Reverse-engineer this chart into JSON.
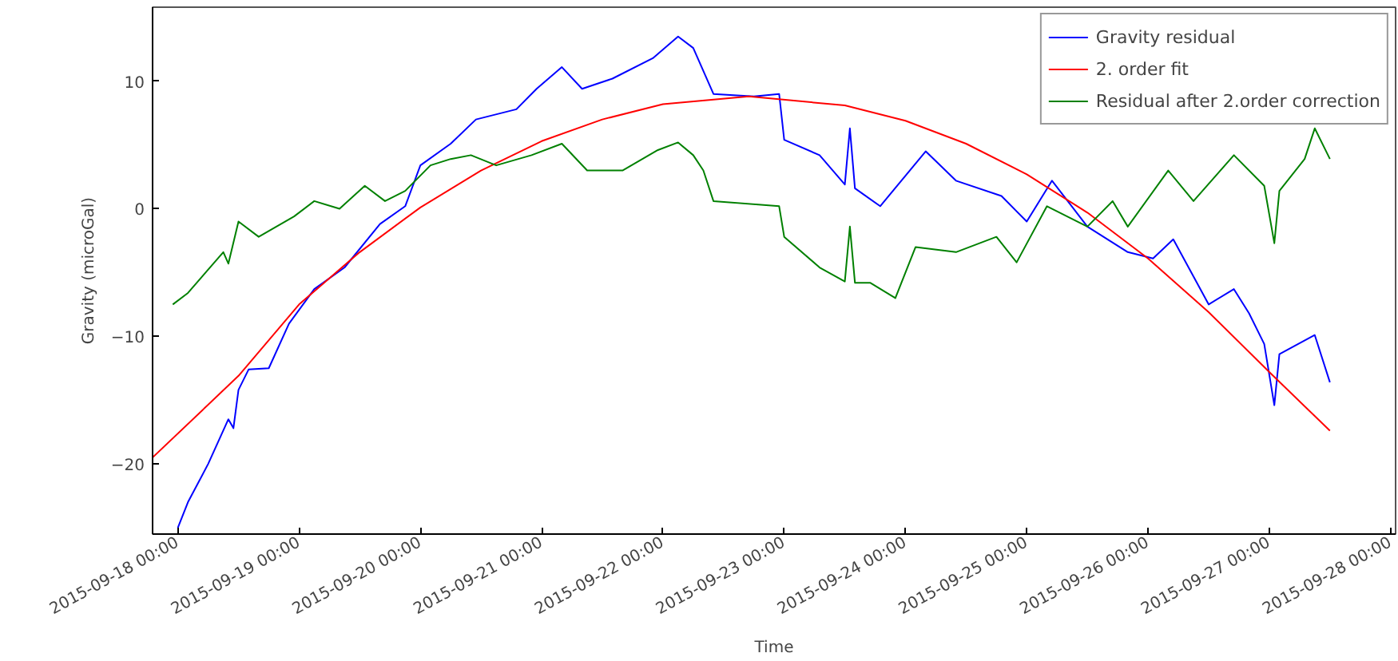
{
  "chart_data": {
    "type": "line",
    "xlabel": "Time",
    "ylabel": "Gravity (microGal)",
    "legend": "top right",
    "grid": false,
    "line_style": "solid",
    "marker": "none",
    "xlim": [
      "2015-09-17T19:00",
      "2015-09-28T01:00"
    ],
    "xticks": [
      {
        "value": "2015-09-18",
        "label": "2015-09-18 00:00"
      },
      {
        "value": "2015-09-19",
        "label": "2015-09-19 00:00"
      },
      {
        "value": "2015-09-20",
        "label": "2015-09-20 00:00"
      },
      {
        "value": "2015-09-21",
        "label": "2015-09-21 00:00"
      },
      {
        "value": "2015-09-22",
        "label": "2015-09-22 00:00"
      },
      {
        "value": "2015-09-23",
        "label": "2015-09-23 00:00"
      },
      {
        "value": "2015-09-24",
        "label": "2015-09-24 00:00"
      },
      {
        "value": "2015-09-25",
        "label": "2015-09-25 00:00"
      },
      {
        "value": "2015-09-26",
        "label": "2015-09-26 00:00"
      },
      {
        "value": "2015-09-27",
        "label": "2015-09-27 00:00"
      },
      {
        "value": "2015-09-28",
        "label": "2015-09-28 00:00"
      }
    ],
    "ylim": [
      -25.5,
      15.8
    ],
    "yticks": [
      -20,
      -10,
      0,
      10
    ],
    "series": [
      {
        "name": "Gravity residual",
        "color": "#0000ff",
        "x": [
          "2015-09-18T00:00",
          "2015-09-18T02:00",
          "2015-09-18T06:00",
          "2015-09-18T10:00",
          "2015-09-18T11:00",
          "2015-09-18T12:00",
          "2015-09-18T14:00",
          "2015-09-18T18:00",
          "2015-09-18T22:00",
          "2015-09-19T03:00",
          "2015-09-19T09:00",
          "2015-09-19T16:00",
          "2015-09-19T21:00",
          "2015-09-20T00:00",
          "2015-09-20T06:00",
          "2015-09-20T11:00",
          "2015-09-20T19:00",
          "2015-09-20T23:00",
          "2015-09-21T04:00",
          "2015-09-21T08:00",
          "2015-09-21T14:00",
          "2015-09-21T22:00",
          "2015-09-22T03:00",
          "2015-09-22T06:00",
          "2015-09-22T10:00",
          "2015-09-22T18:00",
          "2015-09-22T23:00",
          "2015-09-23T00:00",
          "2015-09-23T07:00",
          "2015-09-23T12:00",
          "2015-09-23T13:00",
          "2015-09-23T14:00",
          "2015-09-23T19:00",
          "2015-09-24T04:00",
          "2015-09-24T10:00",
          "2015-09-24T19:00",
          "2015-09-25T00:00",
          "2015-09-25T05:00",
          "2015-09-25T12:00",
          "2015-09-25T20:00",
          "2015-09-26T01:00",
          "2015-09-26T05:00",
          "2015-09-26T12:00",
          "2015-09-26T17:00",
          "2015-09-26T20:00",
          "2015-09-26T23:00",
          "2015-09-27T01:00",
          "2015-09-27T02:00",
          "2015-09-27T09:00",
          "2015-09-27T12:00"
        ],
        "values": [
          -25,
          -23,
          -20,
          -16.5,
          -17.2,
          -14.2,
          -12.6,
          -12.5,
          -9.0,
          -6.3,
          -4.6,
          -1.2,
          0.2,
          3.4,
          5.1,
          7.0,
          7.8,
          9.4,
          11.1,
          9.4,
          10.2,
          11.8,
          13.5,
          12.6,
          9.0,
          8.8,
          9.0,
          5.4,
          4.2,
          1.9,
          6.3,
          1.6,
          0.2,
          4.5,
          2.2,
          1.0,
          -1.0,
          2.2,
          -1.4,
          -3.4,
          -3.9,
          -2.4,
          -7.5,
          -6.3,
          -8.2,
          -10.6,
          -15.4,
          -11.4,
          -9.9,
          -13.6
        ]
      },
      {
        "name": "2. order fit",
        "color": "#ff0000",
        "x": [
          "2015-09-17T19:00",
          "2015-09-18T12:00",
          "2015-09-19T00:00",
          "2015-09-19T12:00",
          "2015-09-20T00:00",
          "2015-09-20T12:00",
          "2015-09-21T00:00",
          "2015-09-21T12:00",
          "2015-09-22T00:00",
          "2015-09-22T17:00",
          "2015-09-23T12:00",
          "2015-09-24T00:00",
          "2015-09-24T12:00",
          "2015-09-25T00:00",
          "2015-09-25T12:00",
          "2015-09-26T00:00",
          "2015-09-26T12:00",
          "2015-09-27T00:00",
          "2015-09-27T12:00"
        ],
        "values": [
          -19.5,
          -13.1,
          -7.5,
          -3.4,
          0.1,
          3.0,
          5.3,
          7.0,
          8.2,
          8.8,
          8.1,
          6.9,
          5.1,
          2.7,
          -0.3,
          -3.9,
          -8.1,
          -12.8,
          -17.4
        ]
      },
      {
        "name": "Residual after 2.order correction",
        "color": "#008000",
        "x": [
          "2015-09-17T23:00",
          "2015-09-18T02:00",
          "2015-09-18T09:00",
          "2015-09-18T10:00",
          "2015-09-18T12:00",
          "2015-09-18T16:00",
          "2015-09-18T23:00",
          "2015-09-19T03:00",
          "2015-09-19T08:00",
          "2015-09-19T13:00",
          "2015-09-19T17:00",
          "2015-09-19T21:00",
          "2015-09-20T02:00",
          "2015-09-20T06:00",
          "2015-09-20T10:00",
          "2015-09-20T15:00",
          "2015-09-20T22:00",
          "2015-09-21T04:00",
          "2015-09-21T09:00",
          "2015-09-21T16:00",
          "2015-09-21T23:00",
          "2015-09-22T03:00",
          "2015-09-22T06:00",
          "2015-09-22T08:00",
          "2015-09-22T10:00",
          "2015-09-22T23:00",
          "2015-09-23T00:00",
          "2015-09-23T07:00",
          "2015-09-23T12:00",
          "2015-09-23T13:00",
          "2015-09-23T14:00",
          "2015-09-23T17:00",
          "2015-09-23T22:00",
          "2015-09-24T02:00",
          "2015-09-24T10:00",
          "2015-09-24T18:00",
          "2015-09-24T22:00",
          "2015-09-25T04:00",
          "2015-09-25T12:00",
          "2015-09-25T17:00",
          "2015-09-25T20:00",
          "2015-09-26T04:00",
          "2015-09-26T09:00",
          "2015-09-26T17:00",
          "2015-09-26T23:00",
          "2015-09-27T01:00",
          "2015-09-27T02:00",
          "2015-09-27T07:00",
          "2015-09-27T09:00",
          "2015-09-27T12:00"
        ],
        "values": [
          -7.5,
          -6.6,
          -3.4,
          -4.3,
          -1.0,
          -2.2,
          -0.6,
          0.6,
          0,
          1.8,
          0.6,
          1.4,
          3.4,
          3.9,
          4.2,
          3.4,
          4.2,
          5.1,
          3.0,
          3.0,
          4.6,
          5.2,
          4.2,
          3.0,
          0.6,
          0.2,
          -2.2,
          -4.6,
          -5.7,
          -1.4,
          -5.8,
          -5.8,
          -7.0,
          -3.0,
          -3.4,
          -2.2,
          -4.2,
          0.2,
          -1.4,
          0.6,
          -1.4,
          3.0,
          0.6,
          4.2,
          1.8,
          -2.7,
          1.4,
          3.9,
          6.3,
          3.9
        ]
      }
    ]
  }
}
